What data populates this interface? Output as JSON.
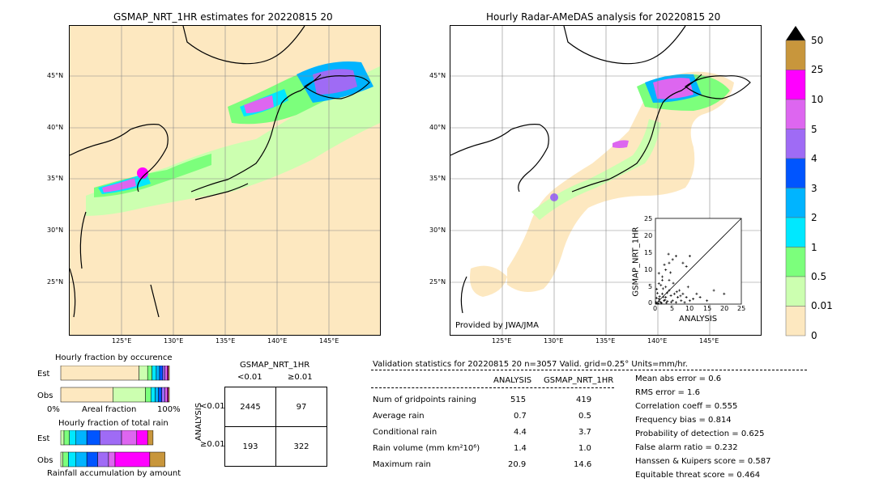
{
  "left_map": {
    "title": "GSMAP_NRT_1HR estimates for 20220815 20",
    "lat_labels": [
      "45°N",
      "40°N",
      "35°N",
      "30°N",
      "25°N"
    ],
    "lon_labels": [
      "125°E",
      "130°E",
      "135°E",
      "140°E",
      "145°E"
    ]
  },
  "right_map": {
    "title": "Hourly Radar-AMeDAS analysis for 20220815 20",
    "lat_labels": [
      "45°N",
      "40°N",
      "35°N",
      "30°N",
      "25°N"
    ],
    "lon_labels": [
      "125°E",
      "130°E",
      "135°E",
      "140°E",
      "145°E"
    ],
    "credit": "Provided by JWA/JMA"
  },
  "colorbar": {
    "labels": [
      "50",
      "25",
      "10",
      "5",
      "4",
      "3",
      "2",
      "1",
      "0.5",
      "0.01",
      "0"
    ],
    "colors": [
      "#c8963c",
      "#ff00ff",
      "#dd66f0",
      "#9f6bf5",
      "#0055ff",
      "#00b4ff",
      "#00e8ff",
      "#7cff7c",
      "#ccffb0",
      "#fde8c0"
    ]
  },
  "scatter": {
    "ylabel": "GSMAP_NRT_1HR",
    "xlabel": "ANALYSIS",
    "ticks": [
      "0",
      "5",
      "10",
      "15",
      "20",
      "25"
    ]
  },
  "chart_data": [
    {
      "type": "scatter",
      "title": "",
      "xlabel": "ANALYSIS",
      "ylabel": "GSMAP_NRT_1HR",
      "xlim": [
        0,
        25
      ],
      "ylim": [
        0,
        25
      ],
      "points": [
        [
          0.5,
          0.2
        ],
        [
          1,
          1.5
        ],
        [
          1.5,
          0.5
        ],
        [
          2,
          3
        ],
        [
          2.5,
          1
        ],
        [
          3,
          2
        ],
        [
          3.5,
          0.8
        ],
        [
          4,
          4
        ],
        [
          4.5,
          2.5
        ],
        [
          5,
          1
        ],
        [
          5.5,
          3
        ],
        [
          6,
          0.5
        ],
        [
          6.5,
          2
        ],
        [
          7,
          4
        ],
        [
          7.5,
          1
        ],
        [
          8,
          3
        ],
        [
          8.5,
          0.5
        ],
        [
          9,
          2
        ],
        [
          9.5,
          5
        ],
        [
          10,
          1
        ],
        [
          1,
          6
        ],
        [
          2,
          8
        ],
        [
          3,
          10
        ],
        [
          4,
          12
        ],
        [
          5,
          13
        ],
        [
          6,
          14
        ],
        [
          3,
          5
        ],
        [
          2,
          7
        ],
        [
          1,
          9
        ],
        [
          4,
          7
        ],
        [
          8,
          12
        ],
        [
          10,
          14
        ],
        [
          9,
          11
        ],
        [
          12,
          3
        ],
        [
          13,
          2
        ],
        [
          15,
          1
        ],
        [
          17,
          4
        ],
        [
          20,
          3
        ],
        [
          0.2,
          0.5
        ],
        [
          0.8,
          0.2
        ],
        [
          1.2,
          2.2
        ],
        [
          1.8,
          0.3
        ],
        [
          2.2,
          4.5
        ],
        [
          2.8,
          1.2
        ],
        [
          3.2,
          0.4
        ],
        [
          0.6,
          3.2
        ],
        [
          0.3,
          1.8
        ],
        [
          1.6,
          5.5
        ],
        [
          6.2,
          3.6
        ],
        [
          7.3,
          2.4
        ],
        [
          11,
          1.5
        ],
        [
          5.2,
          6.1
        ],
        [
          4.4,
          9.2
        ],
        [
          2.6,
          11.5
        ],
        [
          3.8,
          14.6
        ],
        [
          0.4,
          4.4
        ],
        [
          1.1,
          0.9
        ],
        [
          2.3,
          2.1
        ],
        [
          3.4,
          3.3
        ],
        [
          4.6,
          0.6
        ]
      ]
    },
    {
      "type": "bar",
      "title": "Hourly fraction by occurence",
      "categories": [
        "Est",
        "Obs"
      ],
      "xlabel": "Areal fraction",
      "xlim_labels": [
        "0%",
        "100%"
      ],
      "series": [
        {
          "values": [
            0.72,
            0.48
          ]
        },
        {
          "values": [
            0.08,
            0.3
          ]
        },
        {
          "values": [
            0.04,
            0.05
          ]
        },
        {
          "values": [
            0.04,
            0.04
          ]
        },
        {
          "values": [
            0.03,
            0.03
          ]
        },
        {
          "values": [
            0.03,
            0.03
          ]
        },
        {
          "values": [
            0.02,
            0.03
          ]
        },
        {
          "values": [
            0.02,
            0.02
          ]
        },
        {
          "values": [
            0.01,
            0.01
          ]
        },
        {
          "values": [
            0.01,
            0.01
          ]
        }
      ]
    },
    {
      "type": "bar",
      "title": "Hourly fraction of total rain",
      "categories": [
        "Est",
        "Obs"
      ],
      "xlabel": "Rainfall accumulation by amount",
      "series": [
        {
          "values": [
            0.03,
            0.02
          ]
        },
        {
          "values": [
            0.05,
            0.05
          ]
        },
        {
          "values": [
            0.06,
            0.07
          ]
        },
        {
          "values": [
            0.1,
            0.1
          ]
        },
        {
          "values": [
            0.12,
            0.1
          ]
        },
        {
          "values": [
            0.2,
            0.1
          ]
        },
        {
          "values": [
            0.14,
            0.06
          ]
        },
        {
          "values": [
            0.1,
            0.32
          ]
        },
        {
          "values": [
            0.05,
            0.14
          ]
        }
      ]
    }
  ],
  "contingency": {
    "header": "GSMAP_NRT_1HR",
    "col_labels": [
      "<0.01",
      "≥0.01"
    ],
    "row_axis": "ANALYSIS",
    "row_labels": [
      "<0.01",
      "≥0.01"
    ],
    "cells": [
      [
        "2445",
        "97"
      ],
      [
        "193",
        "322"
      ]
    ]
  },
  "validation": {
    "heading": "Validation statistics for 20220815 20  n=3057 Valid. grid=0.25° Units=mm/hr.",
    "col1": "ANALYSIS",
    "col2": "GSMAP_NRT_1HR",
    "rows": [
      {
        "label": "Num of gridpoints raining",
        "a": "515",
        "g": "419"
      },
      {
        "label": "Average rain",
        "a": "0.7",
        "g": "0.5"
      },
      {
        "label": "Conditional rain",
        "a": "4.4",
        "g": "3.7"
      },
      {
        "label": "Rain volume (mm km²10⁶)",
        "a": "1.4",
        "g": "1.0"
      },
      {
        "label": "Maximum rain",
        "a": "20.9",
        "g": "14.6"
      }
    ],
    "scores": [
      "Mean abs error =    0.6",
      "RMS error =    1.6",
      "Correlation coeff =  0.555",
      "Frequency bias =  0.814",
      "Probability of detection =  0.625",
      "False alarm ratio =  0.232",
      "Hanssen & Kuipers score =  0.587",
      "Equitable threat score =  0.464"
    ]
  }
}
